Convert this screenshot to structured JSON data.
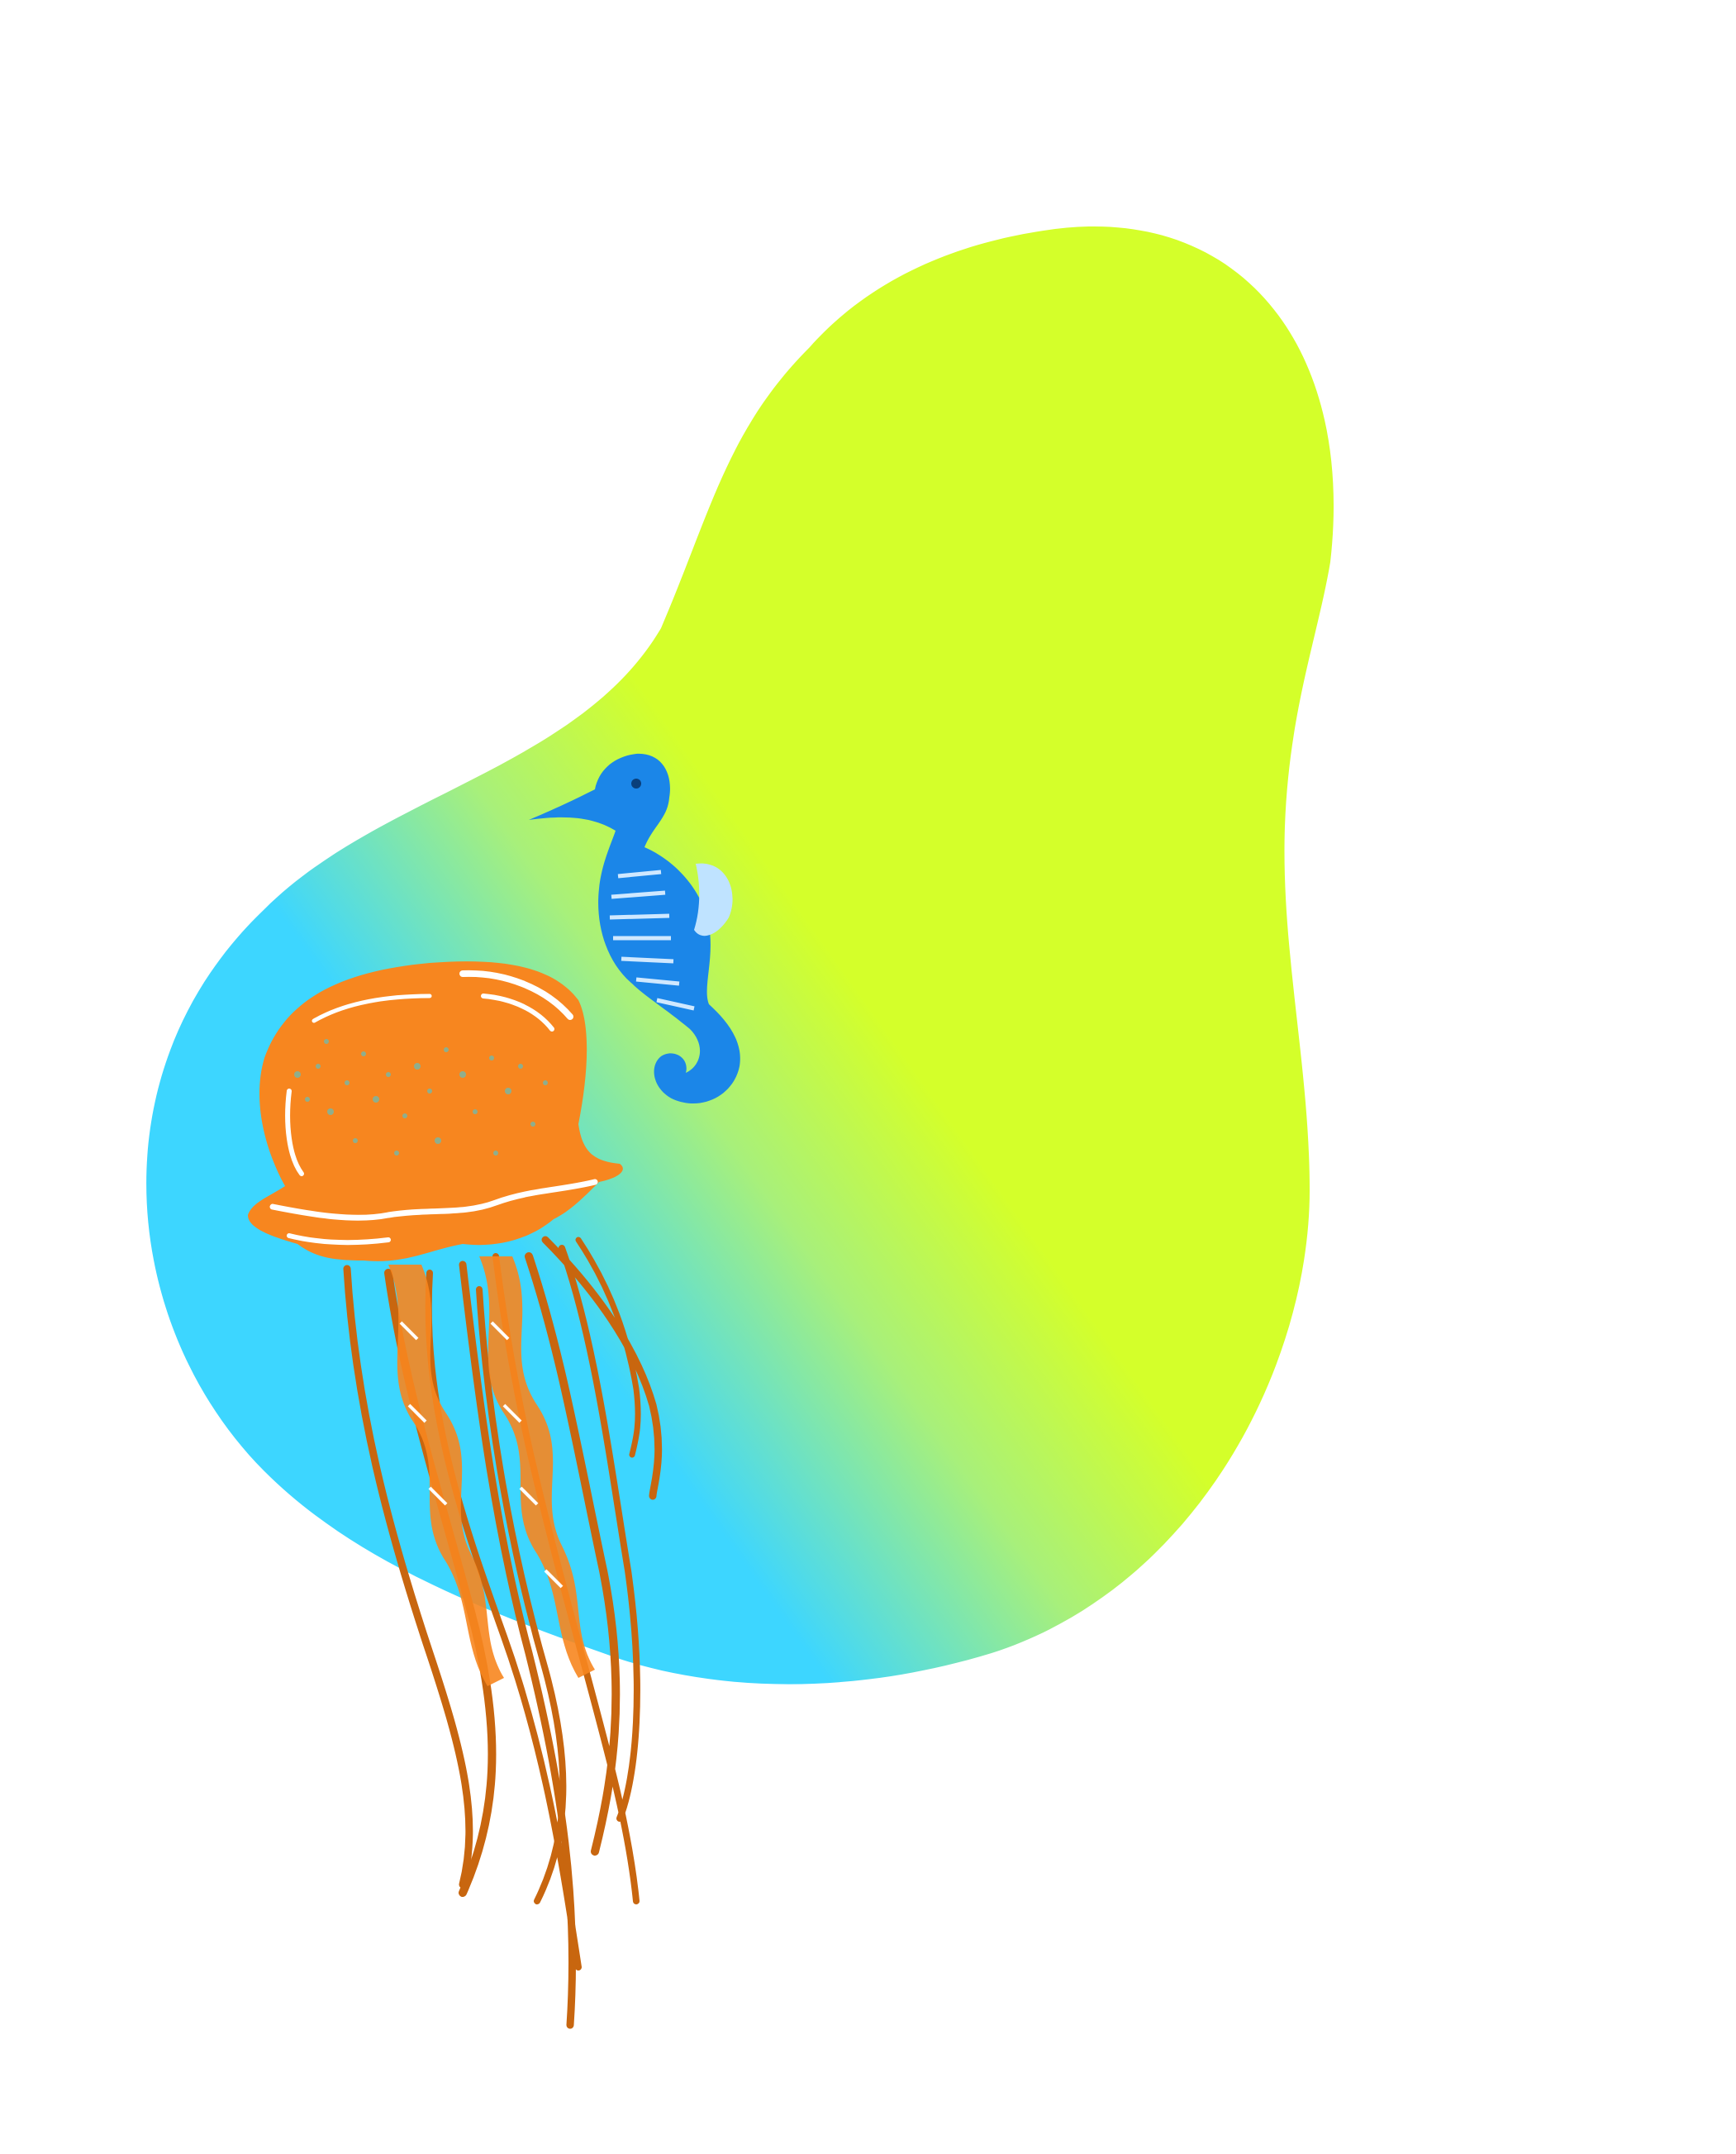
{
  "scene": {
    "background": "#ffffff",
    "blob": {
      "colors": {
        "lime": "#d4ff2a",
        "transition": "#a8f07a",
        "cyan": "#3dd6ff"
      }
    },
    "seahorse": {
      "icon": "seahorse-icon",
      "colors": {
        "body": "#1b86e8",
        "fin": "#bfe3ff",
        "stripes": "#cfe8ff"
      }
    },
    "jellyfish": {
      "icon": "jellyfish-icon",
      "colors": {
        "bell": "#f7861f",
        "highlight": "#ffffff",
        "speckle": "#3bd0e8",
        "tentacles": "#c8660f"
      }
    }
  }
}
